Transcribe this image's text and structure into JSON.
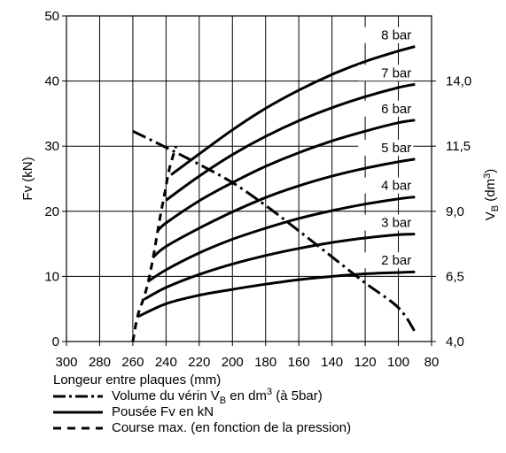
{
  "chart_data": {
    "type": "line",
    "xlabel": "Longeur entre plaques (mm)",
    "ylabel": "Fv (kN)",
    "y2label": "V_B (dm3)",
    "xlim": [
      300,
      80
    ],
    "ylim": [
      0,
      50
    ],
    "y2lim": [
      4.0,
      16.5
    ],
    "grid": true,
    "x_ticks": [
      "300",
      "280",
      "260",
      "240",
      "220",
      "200",
      "180",
      "160",
      "140",
      "120",
      "100",
      "80"
    ],
    "y_ticks": [
      "0",
      "10",
      "20",
      "30",
      "40",
      "50"
    ],
    "y2_ticks": [
      {
        "label": "4,0",
        "y": 0
      },
      {
        "label": "6,5",
        "y": 10
      },
      {
        "label": "9,0",
        "y": 20
      },
      {
        "label": "11,5",
        "y": 30
      },
      {
        "label": "14,0",
        "y": 40
      }
    ],
    "series": [
      {
        "name": "2 bar",
        "style": "solid",
        "x": [
          257,
          240,
          220,
          200,
          180,
          160,
          140,
          120,
          100,
          90
        ],
        "y": [
          3.8,
          5.8,
          7.1,
          8.0,
          8.8,
          9.5,
          10.0,
          10.4,
          10.6,
          10.7
        ]
      },
      {
        "name": "3 bar",
        "style": "solid",
        "x": [
          253,
          240,
          220,
          200,
          180,
          160,
          140,
          120,
          100,
          90
        ],
        "y": [
          6.5,
          8.3,
          10.3,
          11.9,
          13.2,
          14.3,
          15.2,
          15.9,
          16.4,
          16.5
        ]
      },
      {
        "name": "4 bar",
        "style": "solid",
        "x": [
          251,
          240,
          220,
          200,
          180,
          160,
          140,
          120,
          100,
          90
        ],
        "y": [
          9.2,
          11.0,
          13.6,
          15.7,
          17.4,
          18.9,
          20.1,
          21.1,
          21.9,
          22.2
        ]
      },
      {
        "name": "5 bar",
        "style": "solid",
        "x": [
          248,
          240,
          220,
          200,
          180,
          160,
          140,
          120,
          100,
          90
        ],
        "y": [
          12.9,
          14.6,
          17.4,
          19.9,
          22.1,
          23.9,
          25.4,
          26.6,
          27.6,
          28.0
        ]
      },
      {
        "name": "6 bar",
        "style": "solid",
        "x": [
          245,
          240,
          220,
          200,
          180,
          160,
          140,
          120,
          100,
          90
        ],
        "y": [
          17.0,
          18.2,
          21.6,
          24.4,
          26.9,
          29.0,
          30.8,
          32.3,
          33.6,
          34.0
        ]
      },
      {
        "name": "7 bar",
        "style": "solid",
        "x": [
          240,
          220,
          200,
          180,
          160,
          140,
          120,
          100,
          90
        ],
        "y": [
          21.7,
          25.4,
          28.7,
          31.5,
          33.9,
          35.9,
          37.6,
          39.0,
          39.5
        ]
      },
      {
        "name": "8 bar",
        "style": "solid",
        "x": [
          237,
          220,
          200,
          180,
          160,
          140,
          120,
          100,
          90
        ],
        "y": [
          25.6,
          28.8,
          32.5,
          35.8,
          38.6,
          41.0,
          43.0,
          44.6,
          45.3
        ]
      },
      {
        "name": "Volume du vérin V_B en dm3 (à 5bar)",
        "style": "dashdot",
        "x": [
          260,
          240,
          220,
          200,
          180,
          160,
          140,
          120,
          100,
          90
        ],
        "y": [
          32.3,
          29.8,
          27.2,
          24.4,
          20.9,
          17.0,
          13.0,
          9.0,
          5.2,
          1.5
        ]
      },
      {
        "name": "Course max. (en fonction de la pression)",
        "style": "dashed",
        "x": [
          260,
          257,
          253,
          250,
          247,
          244,
          241,
          238,
          234
        ],
        "y": [
          0,
          4.0,
          7.0,
          10.0,
          14.0,
          18.5,
          22.5,
          26.5,
          30.0
        ]
      }
    ],
    "annotations": [
      "2 bar",
      "3 bar",
      "4 bar",
      "5 bar",
      "6 bar",
      "7 bar",
      "8 bar"
    ],
    "legend": {
      "position": "bottom-left",
      "entries": [
        {
          "style": "dashdot",
          "text": "Volume du vérin V",
          "sub": "B",
          "mid": " en dm",
          "sup": "3",
          "end": " (à 5bar)"
        },
        {
          "style": "solid",
          "text": "Pousée Fv en kN"
        },
        {
          "style": "dashed",
          "text": "Course max. (en fonction de la pression)"
        }
      ]
    }
  }
}
